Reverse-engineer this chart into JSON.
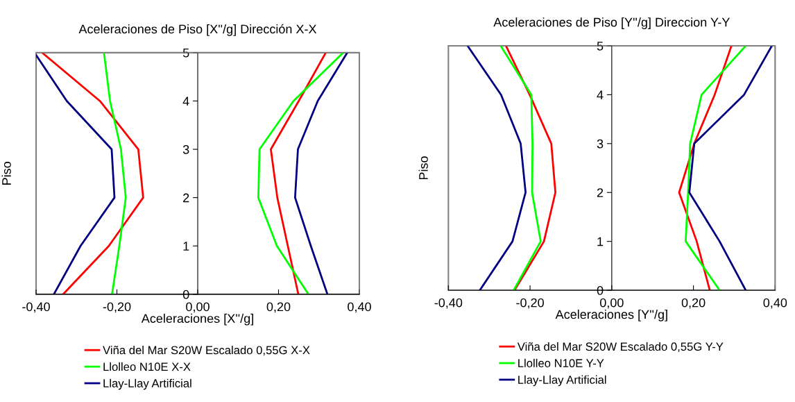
{
  "chart_data": [
    {
      "type": "line",
      "title": "Aceleraciones de Piso [X''/g] Dirección X-X",
      "xlabel": "Aceleraciones [X''/g]",
      "ylabel": "Piso",
      "xlim": [
        -0.4,
        0.4
      ],
      "xticks": [
        {
          "value": -0.4,
          "label": "-0,40"
        },
        {
          "value": -0.2,
          "label": "-0,20"
        },
        {
          "value": 0,
          "label": "0,00"
        },
        {
          "value": 0.2,
          "label": "0,20"
        },
        {
          "value": 0.4,
          "label": "0,40"
        }
      ],
      "ylim": [
        0,
        5
      ],
      "yticks": [
        0,
        1,
        2,
        3,
        4,
        5
      ],
      "grid": false,
      "legend": "bottom",
      "marker": "none",
      "line_style": "solid",
      "series": [
        {
          "name": "Viña del Mar S20W Escalado 0,55G X-X",
          "color": "#ff0000",
          "x": [
            -0.385,
            -0.242,
            -0.147,
            -0.135,
            -0.22,
            -0.333,
            null,
            0.249,
            0.223,
            0.197,
            0.181,
            0.25,
            0.317
          ],
          "values": [
            5,
            4,
            3,
            2,
            1,
            0,
            null,
            0,
            1,
            2,
            3,
            4,
            5
          ]
        },
        {
          "name": "Llolleo N10E X-X",
          "color": "#00ff00",
          "x": [
            -0.232,
            -0.217,
            -0.19,
            -0.178,
            -0.194,
            -0.212,
            null,
            0.274,
            0.196,
            0.15,
            0.153,
            0.237,
            0.36
          ],
          "values": [
            5,
            4,
            3,
            2,
            1,
            0,
            null,
            0,
            1,
            2,
            3,
            4,
            5
          ]
        },
        {
          "name": "Llay-Llay Artificial",
          "color": "#000080",
          "x": [
            -0.4,
            -0.324,
            -0.213,
            -0.206,
            -0.29,
            -0.356,
            null,
            0.321,
            0.28,
            0.241,
            0.248,
            0.297,
            0.37
          ],
          "values": [
            4.95,
            4,
            3,
            2,
            1,
            0,
            null,
            0,
            1,
            2,
            3,
            4,
            5
          ]
        }
      ]
    },
    {
      "type": "line",
      "title": "Aceleraciones de Piso [Y''/g] Direccion Y-Y",
      "xlabel": "Aceleraciones [Y''/g]",
      "ylabel": "Piso",
      "xlim": [
        -0.4,
        0.4
      ],
      "xticks": [
        {
          "value": -0.4,
          "label": "-0,40"
        },
        {
          "value": -0.2,
          "label": "-0,20"
        },
        {
          "value": 0,
          "label": "0,00"
        },
        {
          "value": 0.2,
          "label": "0,20"
        },
        {
          "value": 0.4,
          "label": "0,40"
        }
      ],
      "ylim": [
        0,
        5
      ],
      "yticks": [
        0,
        1,
        2,
        3,
        4,
        5
      ],
      "grid": false,
      "legend": "bottom",
      "marker": "none",
      "line_style": "solid",
      "series": [
        {
          "name": "Viña del Mar S20W Escalado 0,55G Y-Y",
          "color": "#ff0000",
          "x": [
            -0.259,
            -0.201,
            -0.148,
            -0.138,
            -0.166,
            -0.238,
            null,
            0.24,
            0.208,
            0.165,
            0.202,
            0.252,
            0.293
          ],
          "values": [
            5,
            4,
            3,
            2,
            1,
            0,
            null,
            0,
            1,
            2,
            3,
            4,
            5
          ]
        },
        {
          "name": "Llolleo N10E Y-Y",
          "color": "#00ff00",
          "x": [
            -0.272,
            -0.197,
            -0.194,
            -0.195,
            -0.174,
            -0.24,
            null,
            0.264,
            0.181,
            0.187,
            0.192,
            0.22,
            0.328
          ],
          "values": [
            5,
            4,
            3,
            2,
            1,
            0,
            null,
            0,
            1,
            2,
            3,
            4,
            5
          ]
        },
        {
          "name": "Llay-Llay Artificial",
          "color": "#000080",
          "x": [
            -0.353,
            -0.271,
            -0.223,
            -0.211,
            -0.243,
            -0.323,
            null,
            0.328,
            0.264,
            0.19,
            0.202,
            0.324,
            0.392
          ],
          "values": [
            5,
            4,
            3,
            2,
            1,
            0,
            null,
            0,
            1,
            2,
            3,
            4,
            5
          ]
        }
      ]
    }
  ]
}
